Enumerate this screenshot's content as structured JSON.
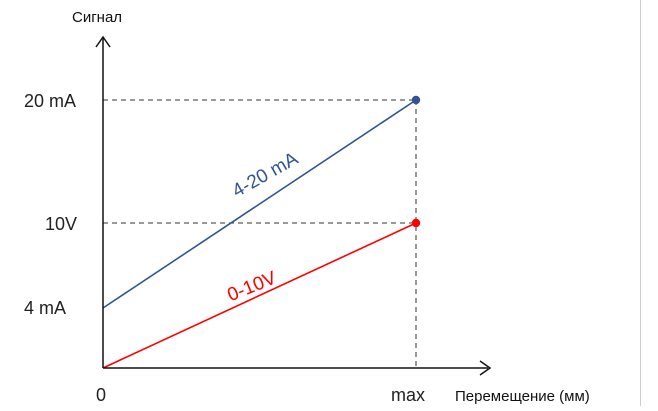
{
  "chart_data": {
    "type": "line",
    "ylabel": "Сигнал",
    "xlabel": "Перемещение (мм)",
    "x_ticks": [
      "0",
      "max"
    ],
    "y_ticks": [
      "4 mA",
      "10V",
      "20 mA"
    ],
    "series": [
      {
        "name": "4-20 mA",
        "color": "#2f5597",
        "points": [
          {
            "x": "0",
            "y": "4 mA"
          },
          {
            "x": "max",
            "y": "20 mA"
          }
        ]
      },
      {
        "name": "0-10V",
        "color": "#ff0000",
        "points": [
          {
            "x": "0",
            "y": "0"
          },
          {
            "x": "max",
            "y": "10V"
          }
        ]
      }
    ],
    "reference_lines": [
      "20 mA",
      "10V",
      "max"
    ],
    "grid": false
  }
}
